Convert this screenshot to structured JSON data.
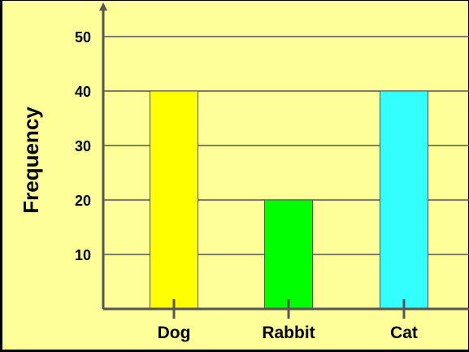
{
  "chart_data": {
    "type": "bar",
    "title": "",
    "xlabel": "",
    "ylabel": "Frequency",
    "categories": [
      "Dog",
      "Rabbit",
      "Cat"
    ],
    "values": [
      40,
      20,
      40
    ],
    "bar_colors": [
      "#ffff00",
      "#00ff00",
      "#33ffff"
    ],
    "yticks": [
      10,
      20,
      30,
      40,
      50
    ],
    "ytick_labels": [
      "10",
      "20",
      "30",
      "40",
      "50"
    ],
    "ylim": [
      0,
      55
    ],
    "grid": true,
    "legend": "none"
  },
  "colors": {
    "background": "#ffff99",
    "border": "#000000",
    "axis": "#555555",
    "grid": "#555555"
  }
}
